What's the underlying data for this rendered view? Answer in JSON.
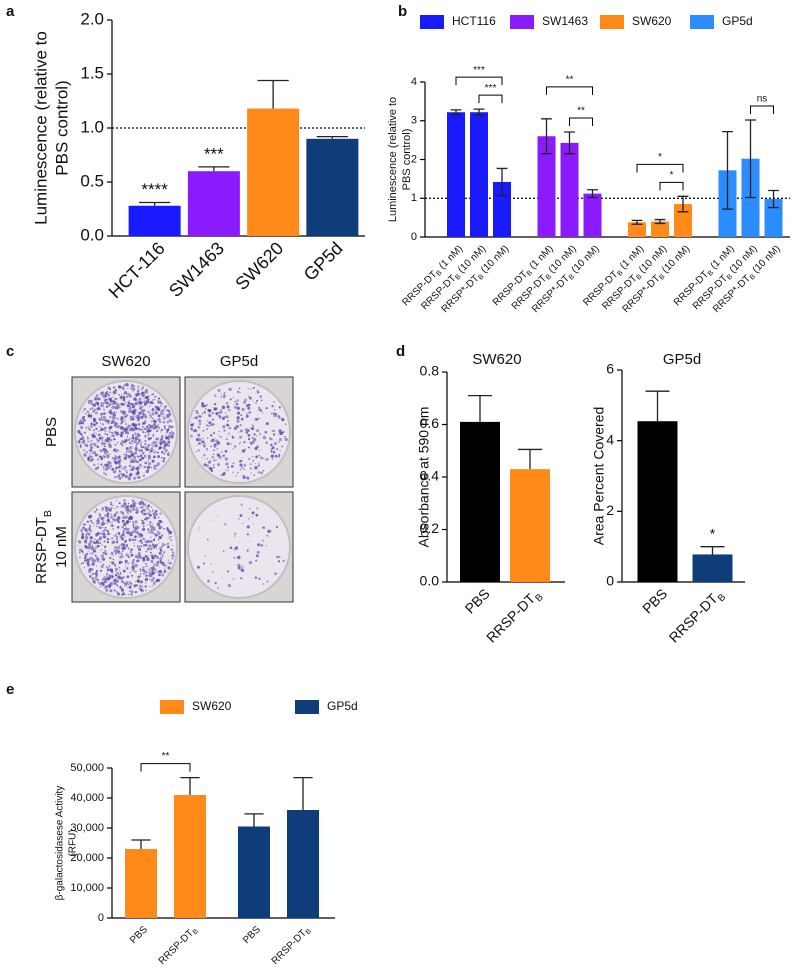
{
  "chart_data": [
    {
      "type": "bar",
      "panel_label": "a",
      "ylabel": [
        "Luminescence (relative to",
        "PBS control)"
      ],
      "categories": [
        "HCT-116",
        "SW1463",
        "SW620",
        "GP5d"
      ],
      "values": [
        0.28,
        0.6,
        1.18,
        0.9
      ],
      "errors": [
        0.03,
        0.04,
        0.26,
        0.02
      ],
      "colors": [
        "#1a1aff",
        "#8c1aff",
        "#ff8a1a",
        "#0f3d7a"
      ],
      "value_annotations": [
        "****",
        "***",
        null,
        null
      ],
      "reference_line": 1,
      "ylim": [
        0,
        2
      ],
      "yticks": [
        {
          "value": 0,
          "label": "0.0"
        },
        0.5,
        {
          "value": 1,
          "label": "1.0"
        },
        1.5,
        {
          "value": 2,
          "label": "2.0"
        }
      ]
    },
    {
      "type": "bar",
      "panel_label": "b",
      "ylabel": [
        "Luminescence (relative to",
        "PBS control)"
      ],
      "categories": [
        {
          "text": "RRSP-DT",
          "sub": "B",
          "tail": " (1 nM)"
        },
        {
          "text": "RRSP-DT",
          "sub": "B",
          "tail": " (10 nM)"
        },
        {
          "text": "RRSP*-DT",
          "sub": "B",
          "tail": " (10 nM)"
        }
      ],
      "series": [
        {
          "name": "HCT116",
          "color": "#1a1aff",
          "values": [
            3.22,
            3.22,
            1.42
          ],
          "errors": [
            0.06,
            0.08,
            0.35
          ]
        },
        {
          "name": "SW1463",
          "color": "#8c1aff",
          "values": [
            2.6,
            2.43,
            1.12
          ],
          "errors": [
            0.45,
            0.28,
            0.1
          ]
        },
        {
          "name": "SW620",
          "color": "#ff8a1a",
          "values": [
            0.38,
            0.4,
            0.85
          ],
          "errors": [
            0.05,
            0.05,
            0.2
          ]
        },
        {
          "name": "GP5d",
          "color": "#2b8cff",
          "values": [
            1.72,
            2.02,
            0.98
          ],
          "errors": [
            1.0,
            1.0,
            0.22
          ]
        }
      ],
      "comparisons": [
        {
          "series": 0,
          "bars": [
            0,
            2
          ],
          "label": "***"
        },
        {
          "series": 0,
          "bars": [
            1,
            2
          ],
          "label": "***"
        },
        {
          "series": 1,
          "bars": [
            0,
            2
          ],
          "label": "**"
        },
        {
          "series": 1,
          "bars": [
            1,
            2
          ],
          "label": "**"
        },
        {
          "series": 2,
          "bars": [
            0,
            2
          ],
          "label": "*"
        },
        {
          "series": 2,
          "bars": [
            1,
            2
          ],
          "label": "*"
        },
        {
          "series": 3,
          "bars": [
            1,
            2
          ],
          "label": "ns"
        }
      ],
      "reference_line": 1,
      "legend": "top",
      "ylim": [
        0,
        4
      ],
      "yticks": [
        0,
        1,
        2,
        3,
        4
      ]
    },
    {
      "type": "bar",
      "panel_label": "d",
      "title": "SW620",
      "ylabel": [
        "Absorbance at 590 nm"
      ],
      "categories": [
        "PBS",
        {
          "text": "RRSP-DT",
          "sub": "B"
        }
      ],
      "values": [
        0.61,
        0.43
      ],
      "errors": [
        0.1,
        0.075
      ],
      "colors": [
        "#000000",
        "#ff8a1a"
      ],
      "ylim": [
        0,
        0.8
      ],
      "yticks": [
        {
          "value": 0,
          "label": "0.0"
        },
        0.2,
        0.4,
        0.6,
        0.8
      ]
    },
    {
      "type": "bar",
      "title": "GP5d",
      "ylabel": [
        "Area Percent Covered"
      ],
      "categories": [
        "PBS",
        {
          "text": "RRSP-DT",
          "sub": "B"
        }
      ],
      "values": [
        4.55,
        0.78
      ],
      "errors": [
        0.85,
        0.22
      ],
      "colors": [
        "#000000",
        "#0f3d7a"
      ],
      "value_annotations": [
        null,
        "*"
      ],
      "ylim": [
        0,
        6
      ],
      "yticks": [
        0,
        2,
        4,
        6
      ]
    },
    {
      "type": "bar",
      "panel_label": "e",
      "ylabel": [
        "β-galactosidasese Activity",
        "(RFU)"
      ],
      "categories": [
        "PBS",
        {
          "text": "RRSP-DT",
          "sub": "B"
        }
      ],
      "series": [
        {
          "name": "SW620",
          "color": "#ff8a1a",
          "values": [
            23000,
            41000
          ],
          "errors": [
            3000,
            5800
          ]
        },
        {
          "name": "GP5d",
          "color": "#0f3d7a",
          "values": [
            30500,
            36000
          ],
          "errors": [
            4200,
            10800
          ]
        }
      ],
      "comparisons": [
        {
          "series": 0,
          "bars": [
            0,
            1
          ],
          "label": "**"
        }
      ],
      "legend": "top",
      "ylim": [
        0,
        50000
      ],
      "yticks": [
        0,
        {
          "value": 10000,
          "label": "10,000"
        },
        {
          "value": 20000,
          "label": "20,000"
        },
        {
          "value": 30000,
          "label": "30,000"
        },
        {
          "value": 40000,
          "label": "40,000"
        },
        {
          "value": 50000,
          "label": "50,000"
        }
      ]
    }
  ],
  "image_panel": {
    "panel_label": "c",
    "columns": [
      "SW620",
      "GP5d"
    ],
    "rows": [
      [
        "PBS"
      ],
      [
        {
          "text": "RRSP-DT",
          "sub": "B"
        },
        "10 nM"
      ]
    ]
  }
}
